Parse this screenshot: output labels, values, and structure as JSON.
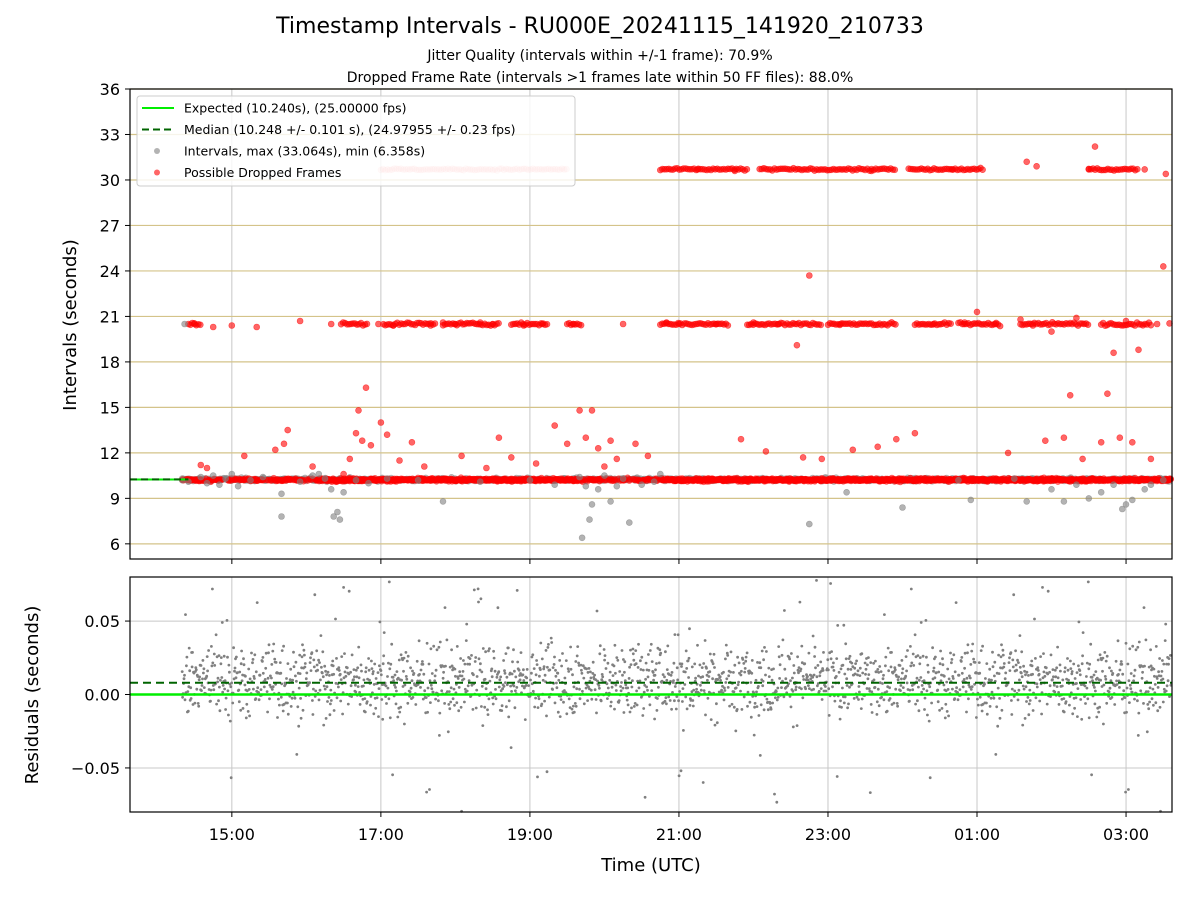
{
  "figure": {
    "title": "Timestamp Intervals - RU000E_20241115_141920_210733",
    "subtitle_1": "Jitter Quality (intervals within +/-1 frame): 70.9%",
    "subtitle_2": "Dropped Frame Rate (intervals >1 frames late within 50 FF files): 88.0%"
  },
  "colors": {
    "expected": "#00ee00",
    "median": "#006400",
    "intervals": "#808080",
    "dropped": "#ff0000",
    "hgrid_top": "#d4c38a",
    "grid": "#c8c8c8"
  },
  "chart_data": [
    {
      "type": "scatter",
      "panel": "intervals",
      "ylabel": "Intervals (seconds)",
      "ylim": [
        5,
        36
      ],
      "yticks": [
        "6",
        "9",
        "12",
        "15",
        "18",
        "21",
        "24",
        "27",
        "30",
        "33",
        "36"
      ],
      "xlim": [
        "13:38",
        "03:37"
      ],
      "xticks": [
        "15:00",
        "17:00",
        "19:00",
        "21:00",
        "23:00",
        "01:00",
        "03:00"
      ],
      "grid": true,
      "legend_placement": "top-left",
      "legend": [
        {
          "label": "Expected (10.240s), (25.00000 fps)",
          "kind": "line-solid",
          "color": "#00ee00"
        },
        {
          "label": "Median (10.248 +/- 0.101 s), (24.97955 +/- 0.23 fps)",
          "kind": "line-dashed",
          "color": "#006400"
        },
        {
          "label": "Intervals, max (33.064s), min (6.358s)",
          "kind": "marker",
          "color": "#808080"
        },
        {
          "label": "Possible Dropped Frames",
          "kind": "marker",
          "color": "#ff0000"
        }
      ],
      "expected_value": 10.24,
      "median_value": 10.248,
      "series": [
        {
          "name": "Intervals, max (33.064s), min (6.358s)",
          "points": [
            [
              "14:20",
              10.2
            ],
            [
              "14:22",
              20.5
            ],
            [
              "14:25",
              10.1
            ],
            [
              "14:35",
              10.4
            ],
            [
              "14:40",
              10.0
            ],
            [
              "14:45",
              10.5
            ],
            [
              "14:50",
              9.9
            ],
            [
              "14:55",
              10.3
            ],
            [
              "15:00",
              10.6
            ],
            [
              "15:05",
              9.8
            ],
            [
              "15:15",
              10.2
            ],
            [
              "15:25",
              10.4
            ],
            [
              "15:40",
              9.3
            ],
            [
              "15:40",
              7.8
            ],
            [
              "15:55",
              10.1
            ],
            [
              "16:05",
              10.5
            ],
            [
              "16:10",
              10.6
            ],
            [
              "16:15",
              10.3
            ],
            [
              "16:20",
              9.6
            ],
            [
              "16:22",
              7.8
            ],
            [
              "16:25",
              8.1
            ],
            [
              "16:27",
              7.6
            ],
            [
              "16:30",
              9.4
            ],
            [
              "16:40",
              10.2
            ],
            [
              "16:50",
              10.0
            ],
            [
              "17:05",
              10.3
            ],
            [
              "17:30",
              10.2
            ],
            [
              "17:50",
              8.8
            ],
            [
              "18:20",
              10.1
            ],
            [
              "19:00",
              10.2
            ],
            [
              "19:40",
              10.4
            ],
            [
              "19:42",
              6.4
            ],
            [
              "19:45",
              9.8
            ],
            [
              "19:48",
              7.6
            ],
            [
              "19:50",
              8.6
            ],
            [
              "19:55",
              9.6
            ],
            [
              "20:00",
              10.5
            ],
            [
              "20:05",
              8.8
            ],
            [
              "20:10",
              9.8
            ],
            [
              "20:15",
              10.3
            ],
            [
              "20:20",
              7.4
            ],
            [
              "20:30",
              9.9
            ],
            [
              "20:40",
              10.1
            ],
            [
              "20:45",
              10.6
            ],
            [
              "22:45",
              7.3
            ],
            [
              "23:15",
              9.4
            ],
            [
              "24:00",
              8.4
            ],
            [
              "24:45",
              10.2
            ],
            [
              "24:55",
              8.9
            ],
            [
              "25:30",
              10.3
            ],
            [
              "25:40",
              8.8
            ],
            [
              "26:00",
              9.6
            ],
            [
              "26:10",
              8.8
            ],
            [
              "26:20",
              9.9
            ],
            [
              "26:30",
              9.0
            ],
            [
              "26:40",
              9.4
            ],
            [
              "26:50",
              9.9
            ],
            [
              "26:57",
              8.3
            ],
            [
              "27:00",
              8.6
            ],
            [
              "27:05",
              8.9
            ],
            [
              "27:15",
              9.6
            ],
            [
              "27:20",
              9.9
            ],
            [
              "27:30",
              10.2
            ],
            [
              "19:20",
              9.9
            ]
          ]
        },
        {
          "name": "Possible Dropped Frames",
          "points": [
            [
              "14:30",
              20.5
            ],
            [
              "14:35",
              11.2
            ],
            [
              "14:40",
              11.0
            ],
            [
              "14:45",
              20.3
            ],
            [
              "15:00",
              20.4
            ],
            [
              "15:10",
              11.8
            ],
            [
              "15:20",
              20.3
            ],
            [
              "15:35",
              12.2
            ],
            [
              "15:42",
              12.6
            ],
            [
              "15:45",
              13.5
            ],
            [
              "15:55",
              20.7
            ],
            [
              "16:05",
              11.1
            ],
            [
              "16:20",
              20.5
            ],
            [
              "16:30",
              10.6
            ],
            [
              "16:35",
              11.6
            ],
            [
              "16:40",
              13.3
            ],
            [
              "16:42",
              14.8
            ],
            [
              "16:45",
              12.8
            ],
            [
              "16:48",
              16.3
            ],
            [
              "16:52",
              12.5
            ],
            [
              "16:58",
              20.5
            ],
            [
              "17:00",
              14.0
            ],
            [
              "17:05",
              13.2
            ],
            [
              "17:10",
              20.4
            ],
            [
              "17:15",
              11.5
            ],
            [
              "17:25",
              12.7
            ],
            [
              "17:35",
              11.1
            ],
            [
              "17:40",
              20.4
            ],
            [
              "17:50",
              20.6
            ],
            [
              "18:00",
              20.5
            ],
            [
              "18:05",
              11.8
            ],
            [
              "18:20",
              20.6
            ],
            [
              "18:25",
              11.0
            ],
            [
              "18:30",
              20.5
            ],
            [
              "18:35",
              13.0
            ],
            [
              "18:45",
              11.7
            ],
            [
              "18:55",
              20.4
            ],
            [
              "19:05",
              11.3
            ],
            [
              "19:10",
              20.5
            ],
            [
              "19:20",
              13.8
            ],
            [
              "19:30",
              12.6
            ],
            [
              "19:35",
              20.5
            ],
            [
              "19:40",
              14.8
            ],
            [
              "19:45",
              13.0
            ],
            [
              "19:50",
              14.8
            ],
            [
              "19:55",
              12.3
            ],
            [
              "20:00",
              11.1
            ],
            [
              "20:05",
              12.8
            ],
            [
              "20:10",
              11.6
            ],
            [
              "20:15",
              20.5
            ],
            [
              "20:25",
              12.6
            ],
            [
              "20:35",
              11.8
            ],
            [
              "20:50",
              20.6
            ],
            [
              "21:00",
              20.5
            ],
            [
              "21:15",
              30.7
            ],
            [
              "21:30",
              20.5
            ],
            [
              "21:45",
              30.6
            ],
            [
              "21:50",
              12.9
            ],
            [
              "22:00",
              20.6
            ],
            [
              "22:10",
              12.1
            ],
            [
              "22:20",
              20.5
            ],
            [
              "22:35",
              19.1
            ],
            [
              "22:40",
              11.7
            ],
            [
              "22:45",
              23.7
            ],
            [
              "22:55",
              11.6
            ],
            [
              "23:10",
              20.5
            ],
            [
              "23:20",
              12.2
            ],
            [
              "23:35",
              30.6
            ],
            [
              "23:40",
              12.4
            ],
            [
              "23:55",
              12.9
            ],
            [
              "24:10",
              13.3
            ],
            [
              "24:25",
              20.5
            ],
            [
              "24:40",
              30.7
            ],
            [
              "24:50",
              20.6
            ],
            [
              "25:00",
              21.3
            ],
            [
              "25:15",
              20.5
            ],
            [
              "25:25",
              12.0
            ],
            [
              "25:35",
              20.8
            ],
            [
              "25:40",
              31.2
            ],
            [
              "25:45",
              20.4
            ],
            [
              "25:48",
              30.9
            ],
            [
              "25:55",
              12.8
            ],
            [
              "26:00",
              20.0
            ],
            [
              "26:10",
              13.0
            ],
            [
              "26:15",
              15.8
            ],
            [
              "26:20",
              20.9
            ],
            [
              "26:25",
              11.6
            ],
            [
              "26:30",
              30.7
            ],
            [
              "26:35",
              32.2
            ],
            [
              "26:40",
              12.7
            ],
            [
              "26:45",
              15.9
            ],
            [
              "26:50",
              18.6
            ],
            [
              "26:55",
              13.0
            ],
            [
              "27:00",
              20.7
            ],
            [
              "27:05",
              12.7
            ],
            [
              "27:10",
              18.8
            ],
            [
              "27:15",
              30.7
            ],
            [
              "27:20",
              11.6
            ],
            [
              "27:25",
              20.5
            ],
            [
              "27:30",
              24.3
            ],
            [
              "27:32",
              30.4
            ],
            [
              "27:40",
              12.9
            ],
            [
              "27:50",
              20.6
            ],
            [
              "27:55",
              19.1
            ],
            [
              "28:00",
              11.7
            ],
            [
              "28:10",
              20.5
            ],
            [
              "28:20",
              20.9
            ],
            [
              "28:35",
              30.7
            ]
          ]
        }
      ]
    },
    {
      "type": "scatter",
      "panel": "residuals",
      "ylabel": "Residuals (seconds)",
      "xlabel": "Time (UTC)",
      "ylim": [
        -0.08,
        0.08
      ],
      "yticks": [
        "−0.05",
        "0.00",
        "0.05"
      ],
      "xlim": [
        "13:38",
        "03:37"
      ],
      "xticks": [
        "15:00",
        "17:00",
        "19:00",
        "21:00",
        "23:00",
        "01:00",
        "03:00"
      ],
      "grid": true,
      "expected_residual": 0.0,
      "median_residual": 0.008,
      "series": [
        {
          "name": "Residuals",
          "x_range": [
            "14:20",
            "03:37"
          ],
          "center": 0.01,
          "spread": 0.02,
          "clip": [
            -0.08,
            0.08
          ]
        }
      ]
    }
  ]
}
